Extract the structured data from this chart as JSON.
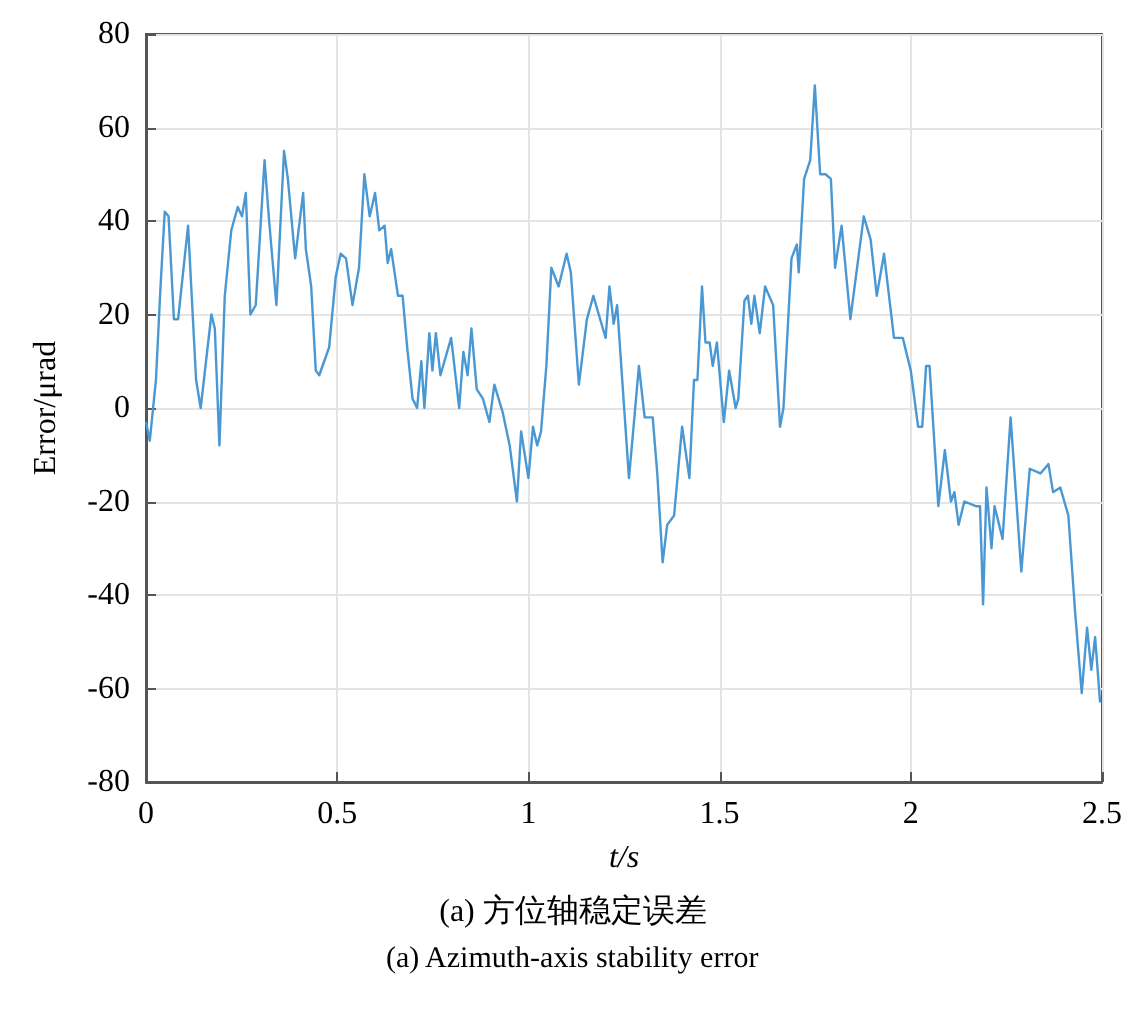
{
  "chart_data": {
    "type": "line",
    "xlabel": "t/s",
    "ylabel": "Error/μrad",
    "annotations": [
      "(a) 方位轴稳定误差",
      "(a) Azimuth-axis stability error"
    ],
    "xlim": [
      0,
      2.5
    ],
    "xticks": [
      0,
      0.5,
      1,
      1.5,
      2,
      2.5
    ],
    "ylim": [
      -80,
      80
    ],
    "yticks": [
      -80,
      -60,
      -40,
      -20,
      0,
      20,
      40,
      60,
      80
    ],
    "grid": true,
    "marker": "none",
    "line_style": "solid",
    "series": [
      {
        "color": "#4a98d3",
        "x": [
          0,
          0.01,
          0.026,
          0.038,
          0.049,
          0.059,
          0.073,
          0.084,
          0.11,
          0.131,
          0.143,
          0.171,
          0.18,
          0.192,
          0.206,
          0.223,
          0.24,
          0.251,
          0.261,
          0.273,
          0.287,
          0.31,
          0.322,
          0.341,
          0.361,
          0.371,
          0.39,
          0.411,
          0.418,
          0.432,
          0.444,
          0.453,
          0.479,
          0.496,
          0.509,
          0.523,
          0.54,
          0.557,
          0.571,
          0.585,
          0.599,
          0.61,
          0.624,
          0.632,
          0.641,
          0.659,
          0.671,
          0.683,
          0.697,
          0.709,
          0.72,
          0.728,
          0.741,
          0.749,
          0.758,
          0.77,
          0.798,
          0.819,
          0.83,
          0.841,
          0.851,
          0.865,
          0.881,
          0.898,
          0.911,
          0.933,
          0.951,
          0.97,
          0.981,
          1.0,
          1.012,
          1.023,
          1.033,
          1.047,
          1.06,
          1.079,
          1.1,
          1.111,
          1.132,
          1.153,
          1.17,
          1.184,
          1.202,
          1.212,
          1.223,
          1.232,
          1.263,
          1.275,
          1.289,
          1.304,
          1.325,
          1.337,
          1.351,
          1.363,
          1.381,
          1.402,
          1.421,
          1.433,
          1.442,
          1.454,
          1.463,
          1.474,
          1.482,
          1.493,
          1.511,
          1.525,
          1.542,
          1.549,
          1.565,
          1.574,
          1.583,
          1.591,
          1.605,
          1.619,
          1.64,
          1.658,
          1.667,
          1.688,
          1.702,
          1.707,
          1.721,
          1.737,
          1.749,
          1.763,
          1.777,
          1.791,
          1.802,
          1.819,
          1.842,
          1.877,
          1.895,
          1.911,
          1.93,
          1.956,
          1.979,
          2.0,
          2.019,
          2.03,
          2.04,
          2.049,
          2.072,
          2.089,
          2.105,
          2.114,
          2.125,
          2.14,
          2.17,
          2.181,
          2.189,
          2.198,
          2.211,
          2.219,
          2.24,
          2.261,
          2.289,
          2.311,
          2.339,
          2.36,
          2.372,
          2.391,
          2.412,
          2.43,
          2.447,
          2.461,
          2.472,
          2.482,
          2.495
        ],
        "values": [
          -3,
          -7,
          6,
          26,
          42,
          41,
          19,
          19,
          39,
          6,
          0,
          20,
          17,
          -8,
          24,
          38,
          43,
          41,
          46,
          20,
          22,
          53,
          40,
          22,
          55,
          49,
          32,
          46,
          34,
          26,
          8,
          7,
          13,
          28,
          33,
          32,
          22,
          30,
          50,
          41,
          46,
          38,
          39,
          31,
          34,
          24,
          24,
          13,
          2,
          0,
          10,
          0,
          16,
          8,
          16,
          7,
          15,
          0,
          12,
          7,
          17,
          4,
          2,
          -3,
          5,
          -1,
          -8,
          -20,
          -5,
          -15,
          -4,
          -8,
          -5,
          9,
          30,
          26,
          33,
          29,
          5,
          19,
          24,
          20,
          15,
          26,
          18,
          22,
          -15,
          -4,
          9,
          -2,
          -2,
          -14,
          -33,
          -25,
          -23,
          -4,
          -15,
          6,
          6,
          26,
          14,
          14,
          9,
          14,
          -3,
          8,
          0,
          2,
          23,
          24,
          18,
          24,
          16,
          26,
          22,
          -4,
          0,
          32,
          35,
          29,
          49,
          53,
          69,
          50,
          50,
          49,
          30,
          39,
          19,
          41,
          36,
          24,
          33,
          15,
          15,
          8,
          -4,
          -4,
          9,
          9,
          -21,
          -9,
          -20,
          -18,
          -25,
          -20,
          -21,
          -21,
          -42,
          -17,
          -30,
          -21,
          -28,
          -2,
          -35,
          -13,
          -14,
          -12,
          -18,
          -17,
          -23,
          -44,
          -61,
          -47,
          -56,
          -49,
          -63
        ]
      }
    ]
  }
}
